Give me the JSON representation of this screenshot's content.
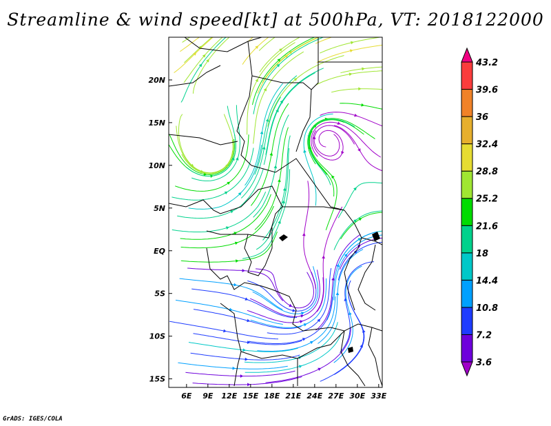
{
  "title": "Streamline & wind speed[kt] at 500hPa, VT: 2018122000",
  "credit": "GrADS: IGES/COLA",
  "map": {
    "lon_range": [
      3.5,
      33.5
    ],
    "lat_range": [
      -16,
      25
    ],
    "x_ticks": [
      "6E",
      "9E",
      "12E",
      "15E",
      "18E",
      "21E",
      "24E",
      "27E",
      "30E",
      "33E"
    ],
    "x_tick_values": [
      6,
      9,
      12,
      15,
      18,
      21,
      24,
      27,
      30,
      33
    ],
    "y_ticks": [
      "20N",
      "15N",
      "10N",
      "5N",
      "EQ",
      "5S",
      "10S",
      "15S"
    ],
    "y_tick_values": [
      20,
      15,
      10,
      5,
      0,
      -5,
      -10,
      -15
    ]
  },
  "colorbar": {
    "labels": [
      "43.2",
      "39.6",
      "36",
      "32.4",
      "28.8",
      "25.2",
      "21.6",
      "18",
      "14.4",
      "10.8",
      "7.2",
      "3.6"
    ],
    "colors": [
      "#a000c8",
      "#6e00dc",
      "#1e3cff",
      "#00a0ff",
      "#00c8c8",
      "#00d28c",
      "#00dc00",
      "#a0e632",
      "#e6dc32",
      "#e6af2d",
      "#f08228",
      "#fa3c3c",
      "#f00082"
    ]
  }
}
